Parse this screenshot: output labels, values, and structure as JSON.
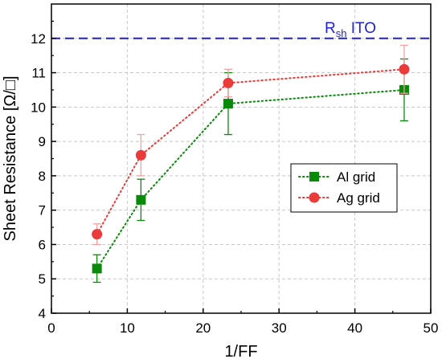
{
  "chart_data": {
    "type": "scatter",
    "title": "",
    "xlabel": "1/FF",
    "ylabel": "Sheet Resistance [Ω/□]",
    "xlim": [
      0,
      50
    ],
    "ylim": [
      4,
      13
    ],
    "x_ticks": [
      0,
      10,
      20,
      30,
      40,
      50
    ],
    "y_ticks": [
      4,
      5,
      6,
      7,
      8,
      9,
      10,
      11,
      12
    ],
    "grid": true,
    "legend_position": "center-right",
    "reference_line": {
      "y": 12,
      "label_main": "R",
      "label_sub": "sh",
      "label_rest": " ITO",
      "color": "#1f1fd6"
    },
    "series": [
      {
        "name": "Al grid",
        "marker": "square",
        "color": "#0a8a0a",
        "x": [
          6,
          11.8,
          23.3,
          46.5
        ],
        "y": [
          5.3,
          7.3,
          10.1,
          10.5
        ],
        "error": [
          0.4,
          0.6,
          0.9,
          0.9
        ]
      },
      {
        "name": "Ag grid",
        "marker": "circle",
        "color": "#ea3a3a",
        "error_color": "#f2a0a0",
        "x": [
          6,
          11.8,
          23.3,
          46.5
        ],
        "y": [
          6.3,
          8.6,
          10.7,
          11.1
        ],
        "error": [
          0.3,
          0.6,
          0.4,
          0.7
        ]
      }
    ]
  }
}
